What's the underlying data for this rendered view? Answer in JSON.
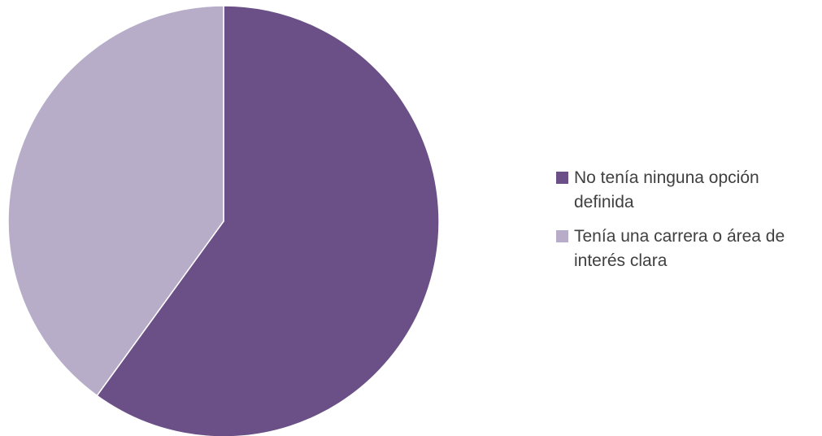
{
  "chart_data": {
    "type": "pie",
    "title": "",
    "slices": [
      {
        "label": "No tenía ninguna opción definida",
        "value": 60,
        "color": "#6a5087"
      },
      {
        "label": "Tenía una carrera o área de interés clara",
        "value": 40,
        "color": "#b8adc9"
      }
    ],
    "start_angle_deg": 0,
    "direction": "clockwise",
    "legend_position": "right"
  }
}
